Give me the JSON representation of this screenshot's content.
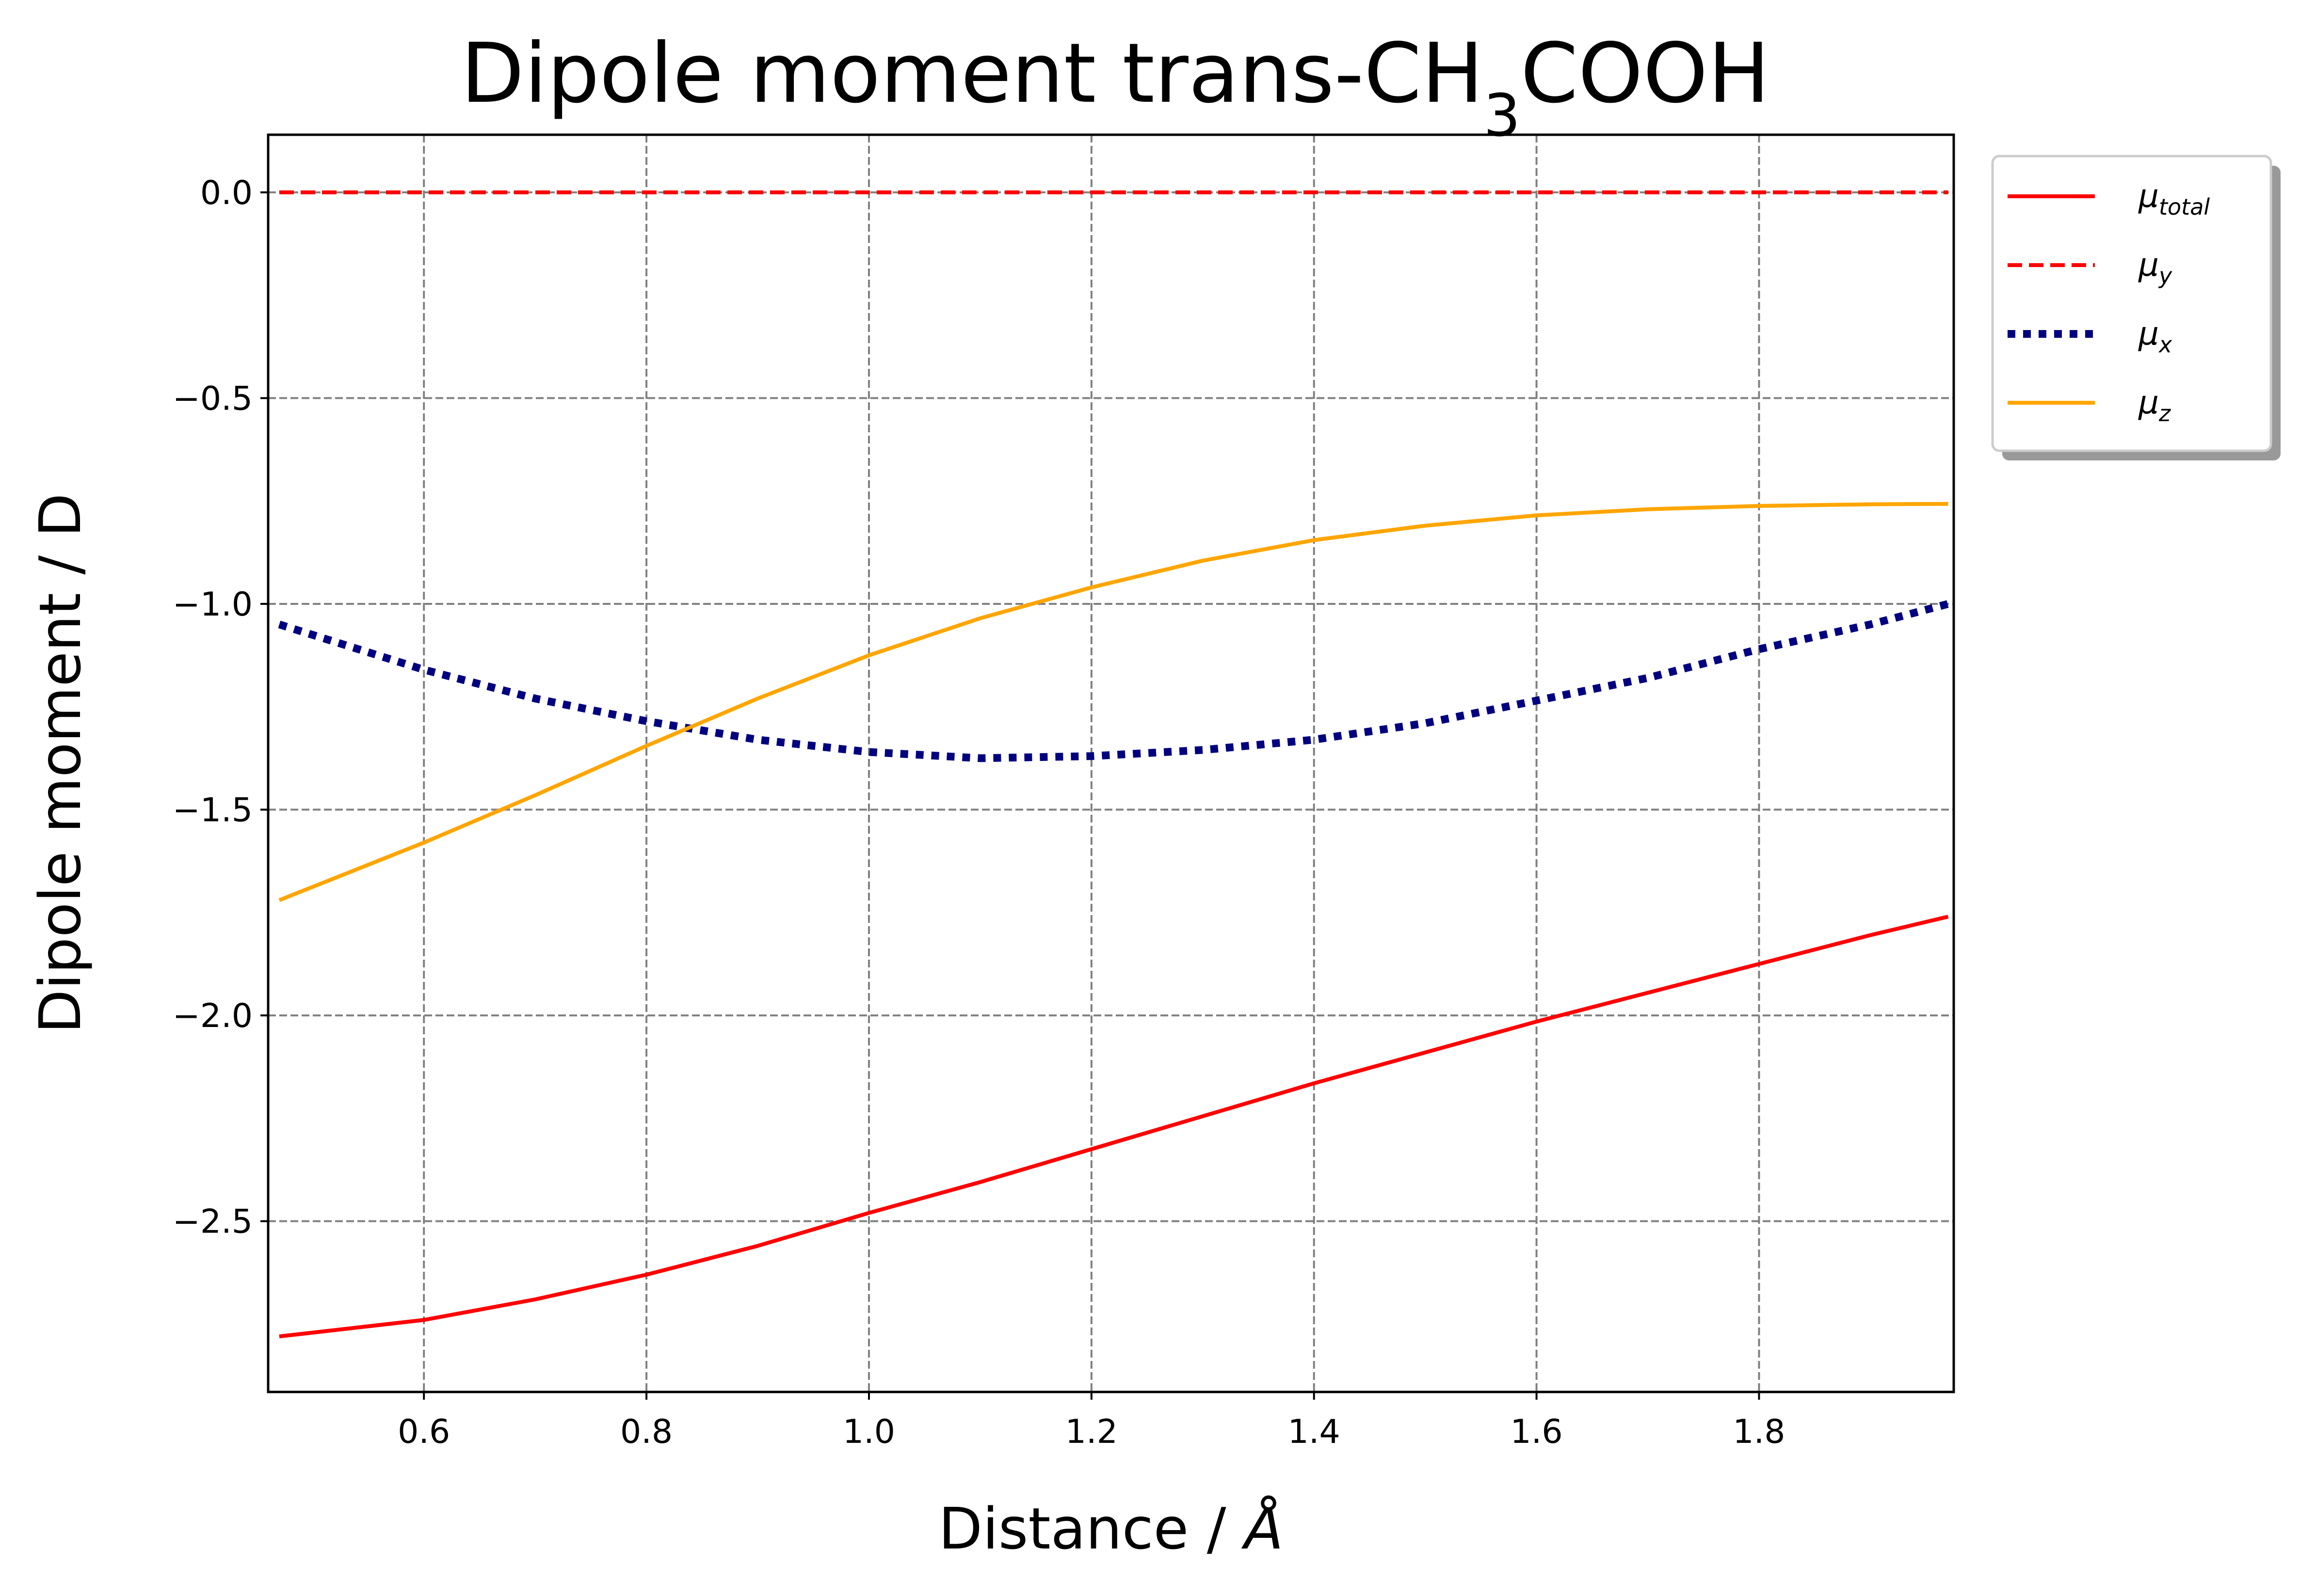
{
  "chart_data": {
    "type": "line",
    "title": "Dipole moment trans-CH",
    "title_subscript": "3",
    "title_suffix": "COOH",
    "xlabel": "Distance / ",
    "xlabel_unit": "Å",
    "ylabel": "Dipole moment  / D",
    "xlim": [
      0.46,
      1.975
    ],
    "ylim": [
      -2.915,
      0.14
    ],
    "grid": true,
    "grid_style": "dashed",
    "legend_position": "outside top-right",
    "x_ticks": [
      0.6,
      0.8,
      1.0,
      1.2,
      1.4,
      1.6,
      1.8
    ],
    "x_tick_labels": [
      "0.6",
      "0.8",
      "1.0",
      "1.2",
      "1.4",
      "1.6",
      "1.8"
    ],
    "y_ticks": [
      0.0,
      -0.5,
      -1.0,
      -1.5,
      -2.0,
      -2.5
    ],
    "y_tick_labels": [
      "0.0",
      "−0.5",
      "−1.0",
      "−1.5",
      "−2.0",
      "−2.5"
    ],
    "series": [
      {
        "name": "μ",
        "name_sub": "total",
        "color": "#ff0000",
        "style": "solid",
        "x": [
          0.47,
          0.6,
          0.7,
          0.8,
          0.9,
          1.0,
          1.1,
          1.2,
          1.3,
          1.4,
          1.5,
          1.6,
          1.7,
          1.8,
          1.9,
          1.97
        ],
        "y": [
          -2.78,
          -2.74,
          -2.69,
          -2.63,
          -2.56,
          -2.48,
          -2.405,
          -2.325,
          -2.245,
          -2.165,
          -2.09,
          -2.015,
          -1.945,
          -1.875,
          -1.805,
          -1.76
        ]
      },
      {
        "name": "μ",
        "name_sub": "y",
        "color": "#ff0000",
        "style": "dashed",
        "x": [
          0.47,
          1.97
        ],
        "y": [
          0.0,
          0.0
        ]
      },
      {
        "name": "μ",
        "name_sub": "x",
        "color": "#000080",
        "style": "dotted",
        "x": [
          0.47,
          0.6,
          0.7,
          0.8,
          0.9,
          1.0,
          1.1,
          1.2,
          1.3,
          1.4,
          1.5,
          1.6,
          1.7,
          1.8,
          1.9,
          1.97
        ],
        "y": [
          -1.05,
          -1.16,
          -1.23,
          -1.285,
          -1.33,
          -1.36,
          -1.375,
          -1.37,
          -1.355,
          -1.33,
          -1.29,
          -1.235,
          -1.18,
          -1.11,
          -1.05,
          -1.0
        ]
      },
      {
        "name": "μ",
        "name_sub": "z",
        "color": "#ffa500",
        "style": "solid",
        "x": [
          0.47,
          0.6,
          0.7,
          0.8,
          0.9,
          1.0,
          1.1,
          1.2,
          1.3,
          1.4,
          1.5,
          1.6,
          1.7,
          1.8,
          1.9,
          1.97
        ],
        "y": [
          -1.72,
          -1.58,
          -1.465,
          -1.345,
          -1.23,
          -1.125,
          -1.035,
          -0.96,
          -0.895,
          -0.845,
          -0.81,
          -0.785,
          -0.77,
          -0.762,
          -0.758,
          -0.757
        ]
      }
    ]
  }
}
